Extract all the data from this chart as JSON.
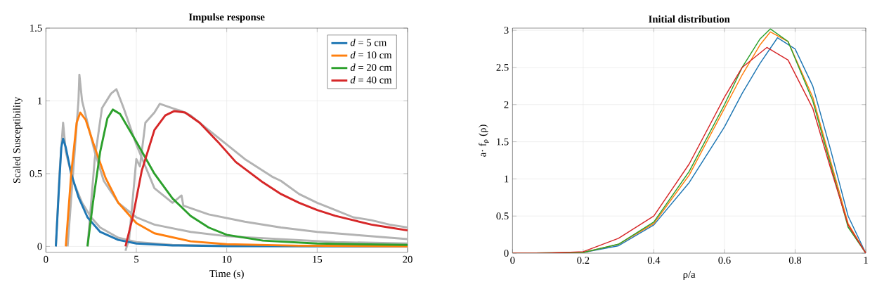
{
  "chart_data": [
    {
      "type": "line",
      "title": "Impulse response",
      "xlabel": "Time (s)",
      "ylabel": "Scaled Susceptibility",
      "xlim": [
        0,
        20
      ],
      "ylim": [
        -0.04,
        1.5
      ],
      "xticks": [
        0,
        5,
        10,
        15,
        20
      ],
      "yticks": [
        0,
        0.5,
        1,
        1.5
      ],
      "grid": true,
      "legend": "top right",
      "series": [
        {
          "color": "#b3b3b3",
          "x": [
            0.55,
            0.75,
            0.95,
            1.1,
            1.5,
            2,
            2.5,
            3,
            4,
            5,
            7,
            10,
            20
          ],
          "values": [
            0,
            0.5,
            0.85,
            0.65,
            0.45,
            0.3,
            0.2,
            0.13,
            0.06,
            0.03,
            0.01,
            0.005,
            0
          ]
        },
        {
          "color": "#b3b3b3",
          "x": [
            1.2,
            1.8,
            1.85,
            2,
            2.3,
            2.7,
            3.2,
            4,
            5,
            6,
            8,
            10,
            13,
            16,
            20
          ],
          "values": [
            0,
            1.0,
            1.18,
            1.0,
            0.85,
            0.65,
            0.45,
            0.3,
            0.2,
            0.15,
            0.1,
            0.07,
            0.05,
            0.03,
            0.02
          ]
        },
        {
          "color": "#b3b3b3",
          "x": [
            2.3,
            2.7,
            3.1,
            3.6,
            3.9,
            4.3,
            5,
            5.5,
            6,
            7,
            7.5,
            7.6,
            9,
            11,
            13,
            15,
            17,
            20
          ],
          "values": [
            0,
            0.6,
            0.95,
            1.05,
            1.08,
            0.95,
            0.7,
            0.55,
            0.4,
            0.3,
            0.35,
            0.28,
            0.22,
            0.17,
            0.13,
            0.1,
            0.08,
            0.05
          ]
        },
        {
          "color": "#b3b3b3",
          "x": [
            4.4,
            4.6,
            5,
            5.2,
            5.5,
            6,
            6.3,
            7,
            7.5,
            8,
            9,
            10,
            11,
            12.5,
            13,
            14,
            15,
            16,
            17,
            18,
            19,
            20
          ],
          "values": [
            -0.03,
            0.05,
            0.6,
            0.55,
            0.85,
            0.92,
            0.98,
            0.95,
            0.93,
            0.9,
            0.8,
            0.7,
            0.6,
            0.48,
            0.45,
            0.36,
            0.3,
            0.25,
            0.2,
            0.18,
            0.15,
            0.13
          ]
        },
        {
          "name": "*d* = 5 cm",
          "color": "#1f77b4",
          "x": [
            0.55,
            0.7,
            0.85,
            0.95,
            1.1,
            1.4,
            1.8,
            2.3,
            3,
            4,
            5,
            7,
            10,
            20
          ],
          "values": [
            0,
            0.35,
            0.68,
            0.74,
            0.68,
            0.5,
            0.34,
            0.2,
            0.1,
            0.045,
            0.02,
            0.007,
            0.002,
            0
          ]
        },
        {
          "name": "*d* = 10 cm",
          "color": "#ff7f0e",
          "x": [
            1.1,
            1.4,
            1.7,
            1.9,
            2.2,
            2.7,
            3.3,
            4,
            5,
            6,
            8,
            10,
            14,
            20
          ],
          "values": [
            0,
            0.5,
            0.85,
            0.92,
            0.87,
            0.68,
            0.47,
            0.3,
            0.16,
            0.09,
            0.035,
            0.015,
            0.005,
            0.001
          ]
        },
        {
          "name": "*d* = 20 cm",
          "color": "#2ca02c",
          "x": [
            2.3,
            2.6,
            3,
            3.4,
            3.7,
            4.1,
            5,
            6,
            7,
            8,
            9,
            10,
            12,
            15,
            20
          ],
          "values": [
            0,
            0.3,
            0.65,
            0.88,
            0.94,
            0.91,
            0.72,
            0.5,
            0.33,
            0.21,
            0.13,
            0.08,
            0.04,
            0.02,
            0.01
          ]
        },
        {
          "name": "*d* = 40 cm",
          "color": "#d62728",
          "x": [
            4.4,
            4.8,
            5.3,
            6,
            6.6,
            7.1,
            7.7,
            8.5,
            9.5,
            10.5,
            12,
            13,
            14,
            15,
            16,
            17,
            18,
            19,
            20
          ],
          "values": [
            0,
            0.2,
            0.52,
            0.8,
            0.9,
            0.93,
            0.92,
            0.85,
            0.72,
            0.58,
            0.44,
            0.36,
            0.3,
            0.25,
            0.21,
            0.18,
            0.15,
            0.13,
            0.11
          ]
        }
      ]
    },
    {
      "type": "line",
      "title": "Initial distribution",
      "xlabel": "ρ/a",
      "ylabel": "a· f$_{ρ}$ (ρ)",
      "xlim": [
        0,
        1
      ],
      "ylim": [
        0,
        3.03
      ],
      "xticks": [
        0,
        0.2,
        0.4,
        0.6,
        0.8,
        1
      ],
      "yticks": [
        0,
        0.5,
        1,
        1.5,
        2,
        2.5,
        3
      ],
      "grid": true,
      "series": [
        {
          "color": "#1f77b4",
          "x": [
            0,
            0.2,
            0.3,
            0.4,
            0.5,
            0.6,
            0.65,
            0.7,
            0.75,
            0.8,
            0.85,
            0.9,
            0.95,
            1
          ],
          "values": [
            0,
            0.01,
            0.1,
            0.38,
            0.95,
            1.7,
            2.15,
            2.55,
            2.9,
            2.75,
            2.25,
            1.4,
            0.5,
            0
          ]
        },
        {
          "color": "#ff7f0e",
          "x": [
            0,
            0.2,
            0.3,
            0.4,
            0.5,
            0.6,
            0.65,
            0.7,
            0.73,
            0.78,
            0.85,
            0.9,
            0.95,
            1
          ],
          "values": [
            0,
            0.01,
            0.12,
            0.4,
            1.05,
            1.95,
            2.4,
            2.8,
            2.98,
            2.85,
            2.1,
            1.25,
            0.4,
            0
          ]
        },
        {
          "color": "#2ca02c",
          "x": [
            0,
            0.2,
            0.3,
            0.4,
            0.5,
            0.6,
            0.65,
            0.7,
            0.73,
            0.78,
            0.85,
            0.9,
            0.95,
            1
          ],
          "values": [
            0,
            0.01,
            0.12,
            0.42,
            1.1,
            2.0,
            2.5,
            2.88,
            3.02,
            2.85,
            2.05,
            1.2,
            0.35,
            0
          ]
        },
        {
          "color": "#d62728",
          "x": [
            0,
            0.1,
            0.2,
            0.3,
            0.4,
            0.5,
            0.6,
            0.65,
            0.72,
            0.78,
            0.85,
            0.9,
            0.95,
            1
          ],
          "values": [
            0,
            0,
            0.02,
            0.2,
            0.5,
            1.2,
            2.1,
            2.5,
            2.77,
            2.6,
            1.95,
            1.15,
            0.38,
            0
          ]
        }
      ]
    }
  ]
}
